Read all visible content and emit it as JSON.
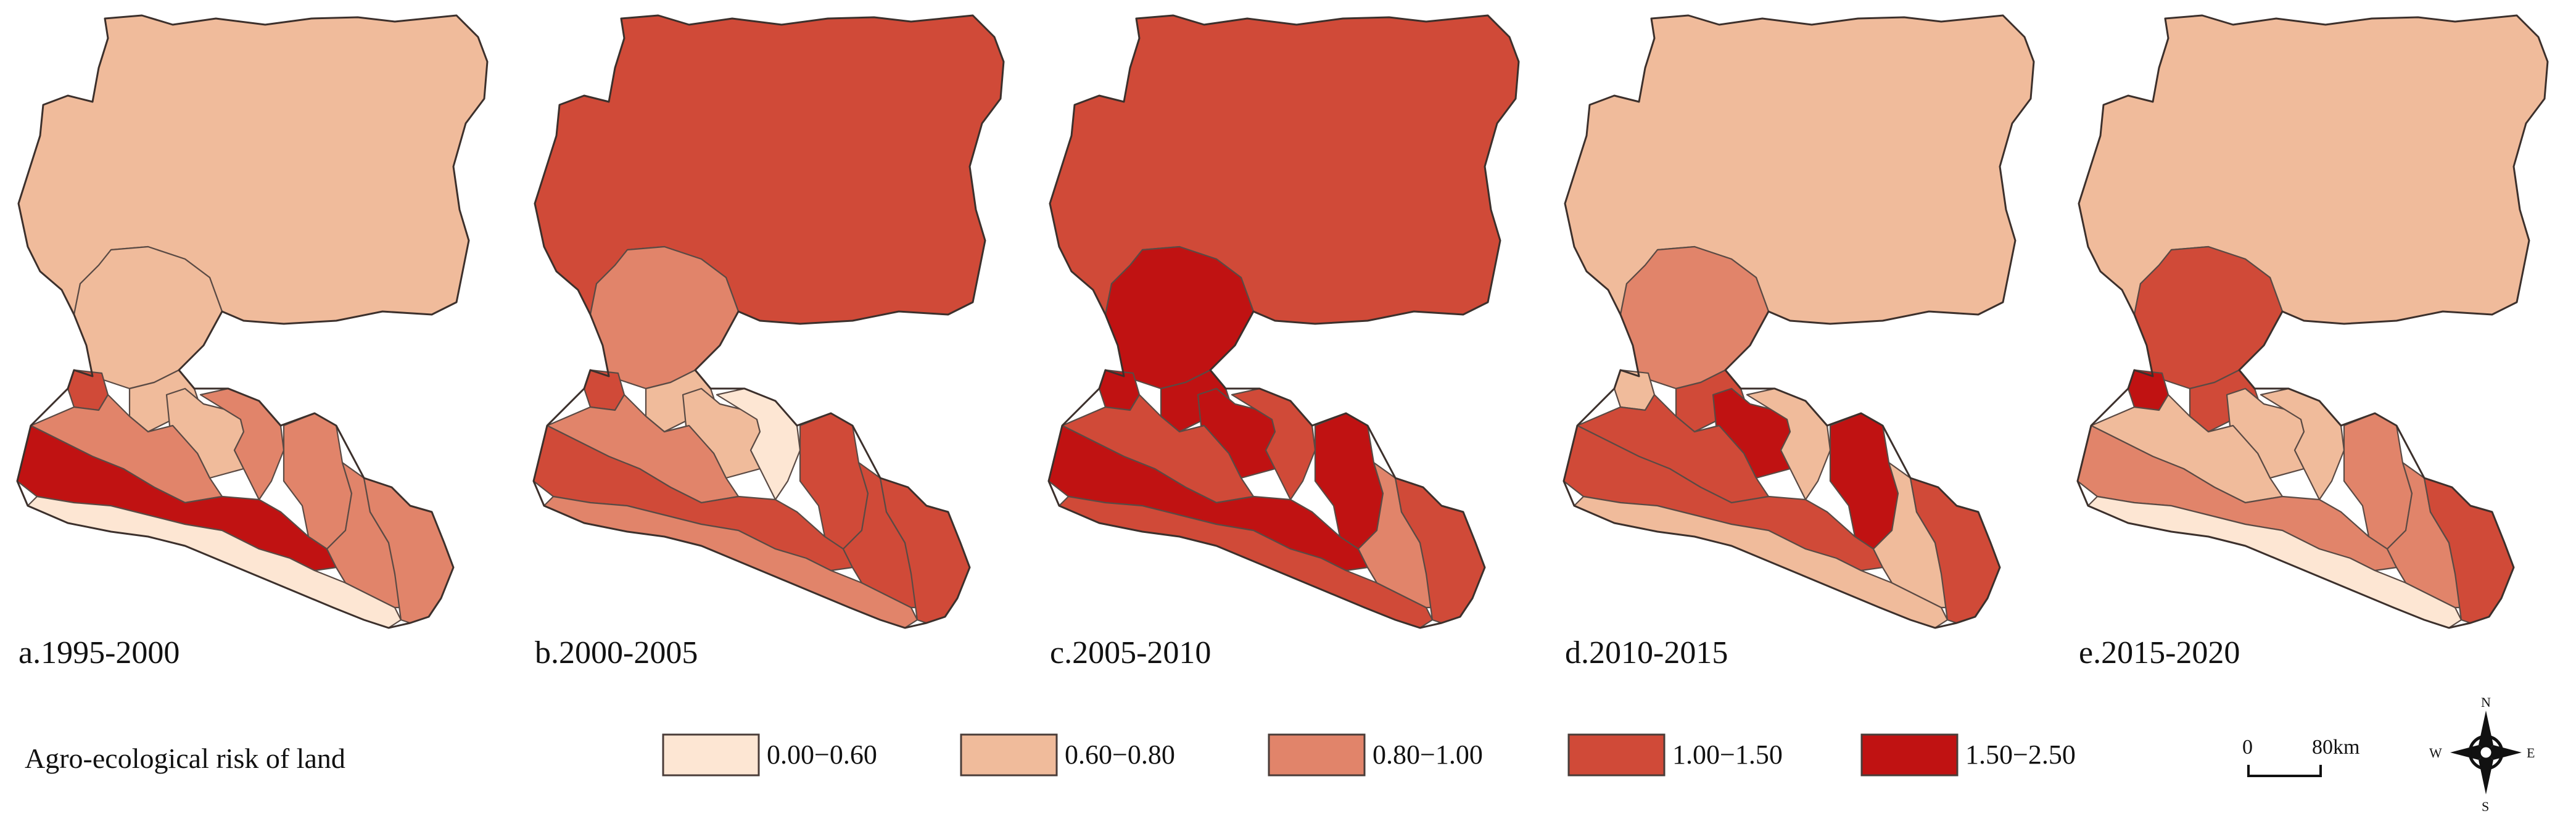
{
  "legend": {
    "title": "Agro-ecological risk of land",
    "classes": [
      {
        "label": "0.00−0.60",
        "color": "#FDE6D3"
      },
      {
        "label": "0.60−0.80",
        "color": "#F0BB9B"
      },
      {
        "label": "0.80−1.00",
        "color": "#E1846A"
      },
      {
        "label": "1.00−1.50",
        "color": "#D04A38"
      },
      {
        "label": "1.50−2.50",
        "color": "#C01212"
      }
    ]
  },
  "panels": [
    {
      "label": "a.1995-2000",
      "classes": [
        1,
        1,
        3,
        1,
        1,
        2,
        2,
        2,
        4,
        0,
        2,
        2
      ]
    },
    {
      "label": "b.2000-2005",
      "classes": [
        3,
        2,
        3,
        1,
        1,
        2,
        0,
        3,
        3,
        2,
        3,
        3
      ]
    },
    {
      "label": "c.2005-2010",
      "classes": [
        3,
        4,
        4,
        4,
        4,
        3,
        3,
        4,
        4,
        3,
        2,
        3
      ]
    },
    {
      "label": "d.2010-2015",
      "classes": [
        1,
        2,
        1,
        3,
        4,
        3,
        1,
        4,
        3,
        1,
        1,
        3
      ]
    },
    {
      "label": "e.2015-2020",
      "classes": [
        1,
        3,
        4,
        3,
        1,
        1,
        1,
        2,
        2,
        0,
        2,
        3
      ]
    }
  ],
  "scale_bar": {
    "start_label": "0",
    "end_label": "80km"
  },
  "north_arrow": {
    "n": "N",
    "s": "S",
    "e": "E",
    "w": "W"
  }
}
